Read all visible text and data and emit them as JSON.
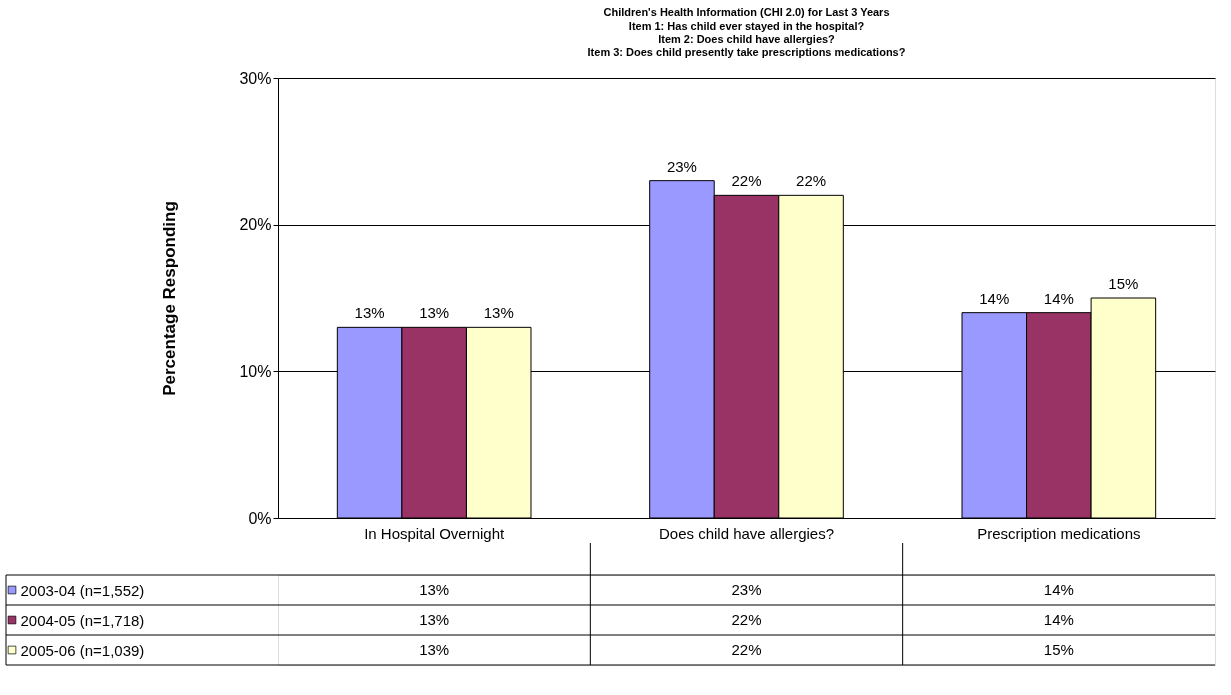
{
  "chart_data": {
    "type": "bar",
    "title": "Children's Health Information (CHI 2.0) for Last 3 Years",
    "subtitle": "Item 1: Has child ever stayed in the hospital?\nItem 2: Does child have allergies?\nItem 3: Does child presently take prescriptions medications?",
    "ylabel": "Percentage Responding",
    "categories": [
      "In Hospital Overnight",
      "Does child have allergies?",
      "Prescription medications"
    ],
    "series": [
      {
        "name": "2003-04 (n=1,552)",
        "color": "#9999ff",
        "values": [
          13,
          23,
          14
        ],
        "value_labels": [
          "13%",
          "23%",
          "14%"
        ]
      },
      {
        "name": "2004-05 (n=1,718)",
        "color": "#993366",
        "values": [
          13,
          22,
          14
        ],
        "value_labels": [
          "13%",
          "22%",
          "14%"
        ]
      },
      {
        "name": "2005-06 (n=1,039)",
        "color": "#ffffcc",
        "values": [
          13,
          22,
          15
        ],
        "value_labels": [
          "13%",
          "22%",
          "15%"
        ]
      }
    ],
    "ylim": [
      0,
      30
    ],
    "yticks": [
      {
        "value": 0,
        "label": "0%"
      },
      {
        "value": 10,
        "label": "10%"
      },
      {
        "value": 20,
        "label": "20%"
      },
      {
        "value": 30,
        "label": "30%"
      }
    ],
    "grid": "y",
    "legend": "bottom"
  }
}
